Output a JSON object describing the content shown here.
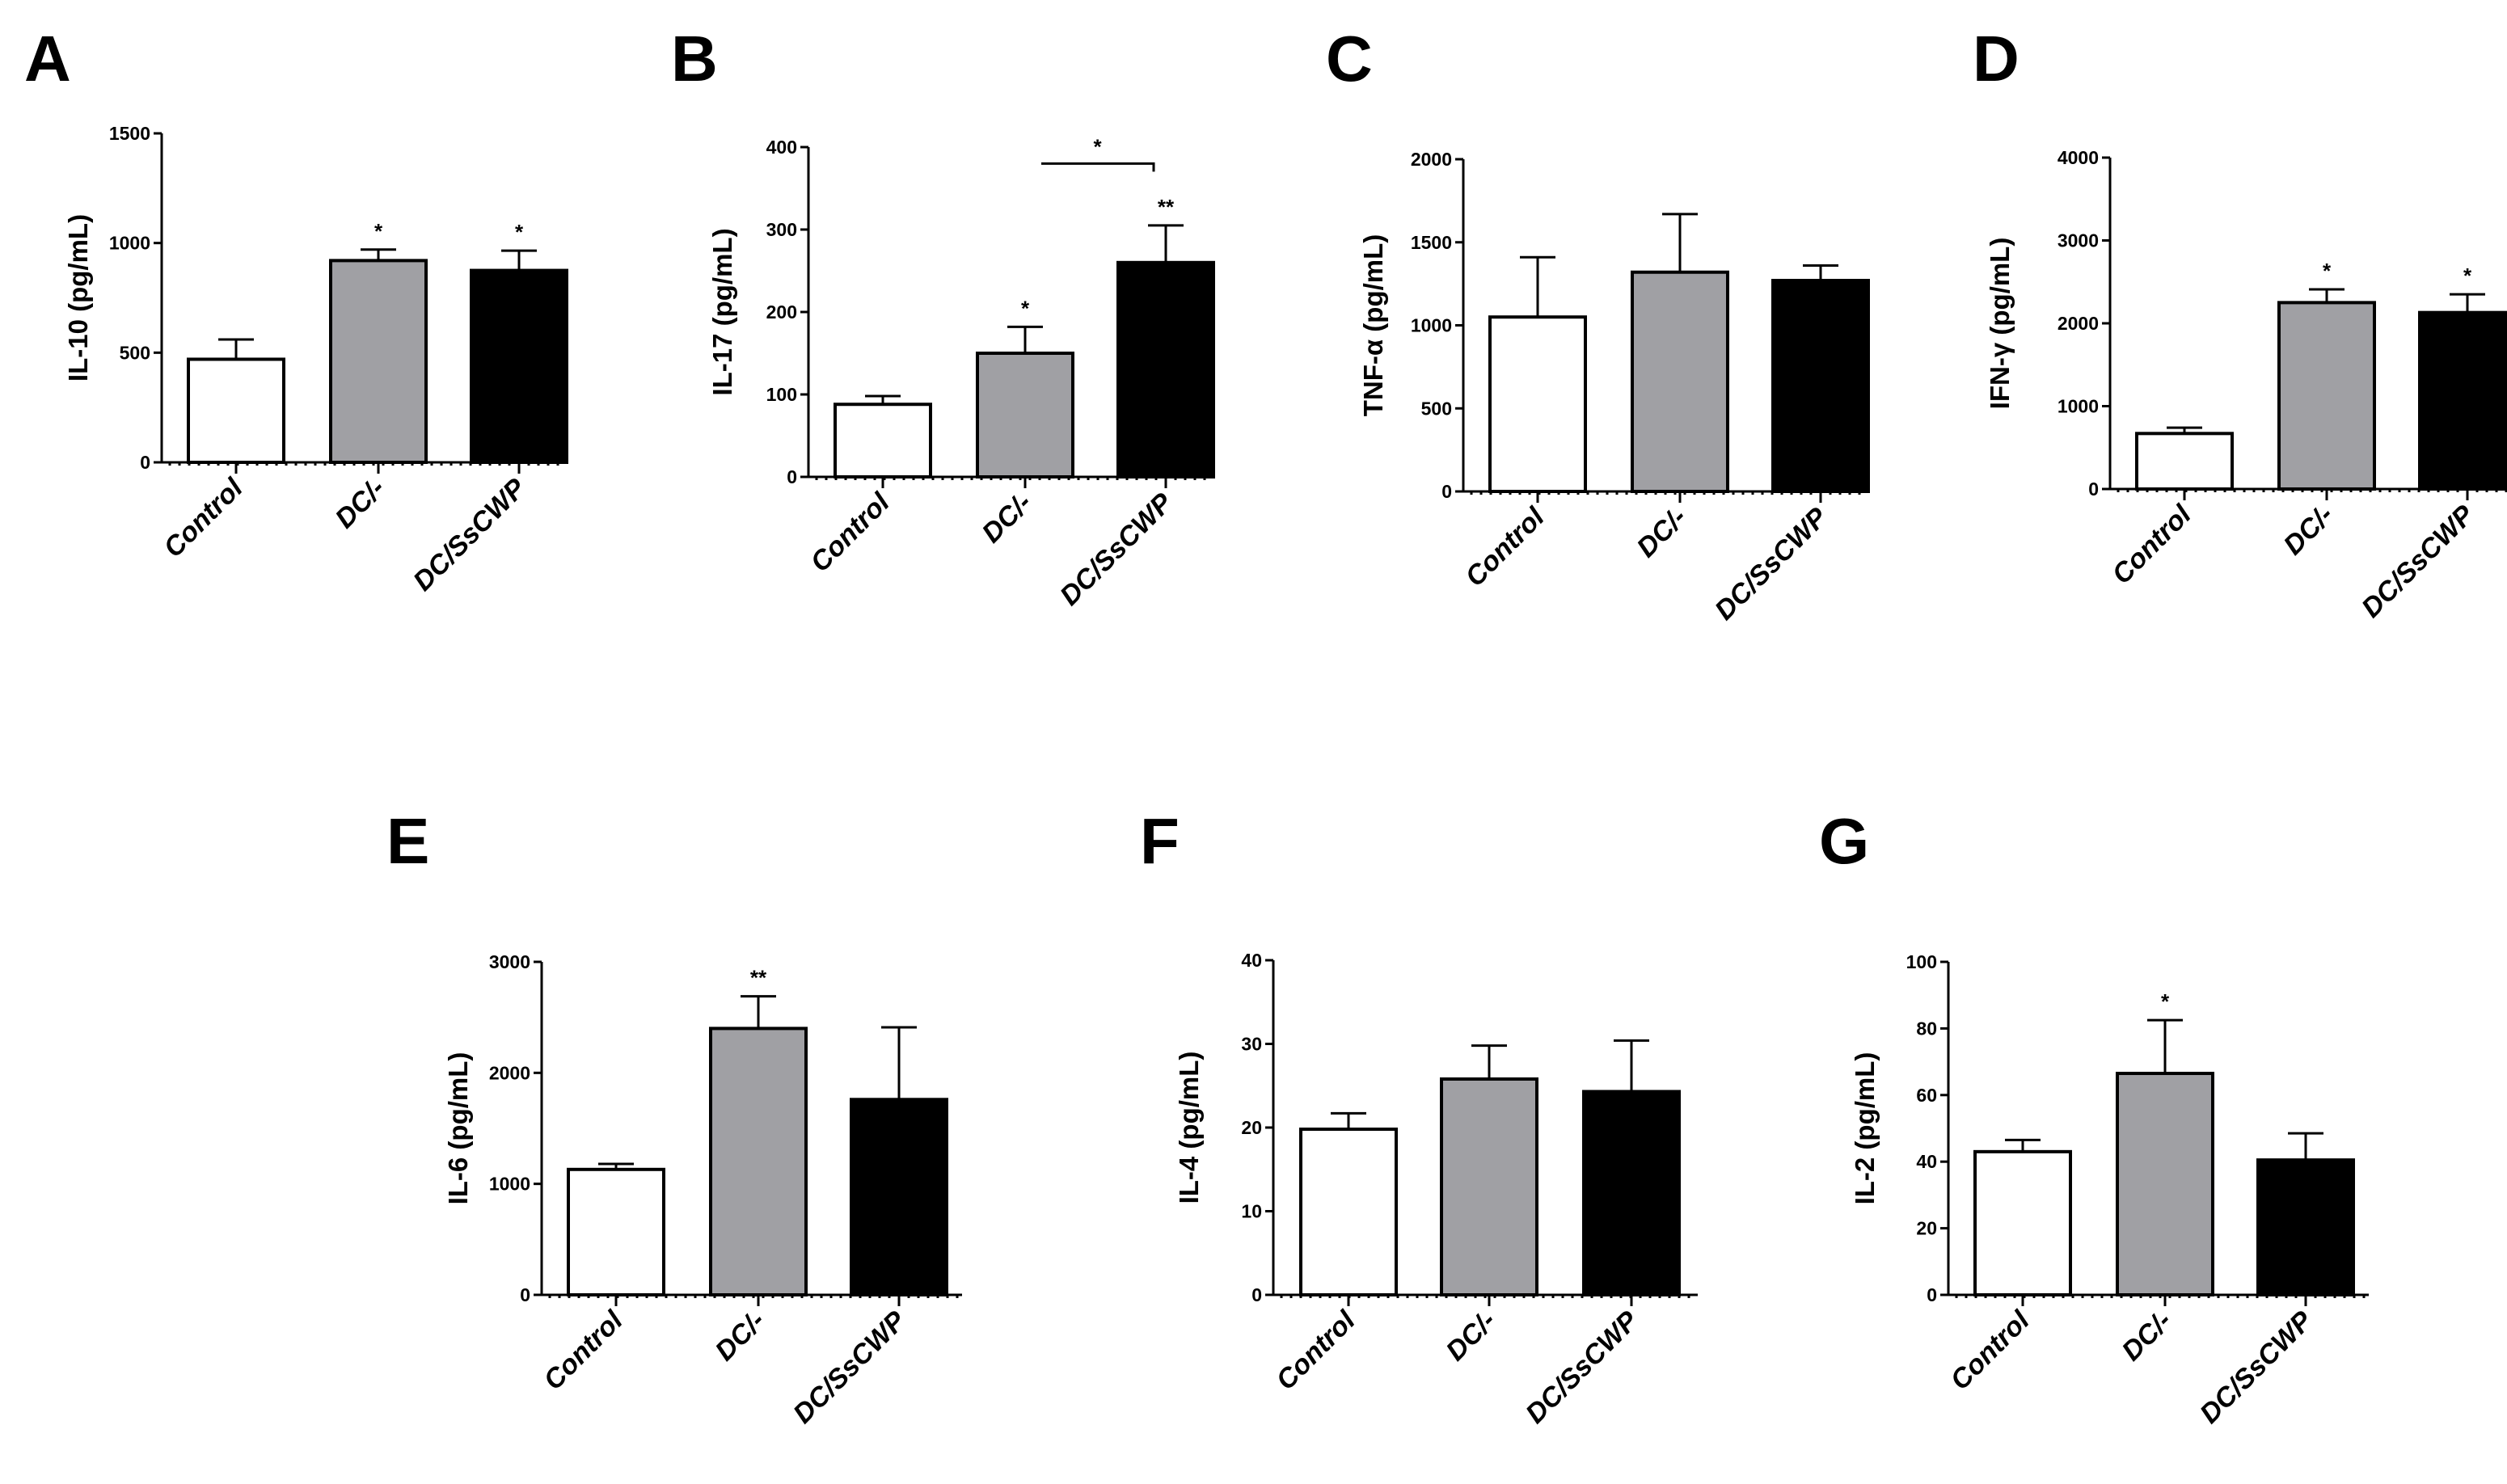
{
  "colors": {
    "Control": "#ffffff",
    "DC/-": "#a0a0a4",
    "DC/SsCWP": "#000000"
  },
  "chart_data": [
    {
      "type": "bar",
      "panel": "A",
      "ylabel": "IL-10 (pg/mL)",
      "categories": [
        "Control",
        "DC/-",
        "DC/SsCWP"
      ],
      "values": [
        470,
        920,
        875
      ],
      "errors": [
        90,
        50,
        90
      ],
      "ylim": [
        0,
        1500
      ],
      "yticks": [
        "0",
        "500",
        "1000",
        "1500"
      ],
      "annotations": [
        "",
        "*",
        "*"
      ],
      "bracket": null
    },
    {
      "type": "bar",
      "panel": "B",
      "ylabel": "IL-17 (pg/mL)",
      "categories": [
        "Control",
        "DC/-",
        "DC/SsCWP"
      ],
      "values": [
        88,
        150,
        260
      ],
      "errors": [
        10,
        32,
        45
      ],
      "ylim": [
        0,
        400
      ],
      "yticks": [
        "0",
        "100",
        "200",
        "300",
        "400"
      ],
      "annotations": [
        "",
        "*",
        "**"
      ],
      "bracket": {
        "from": 1,
        "to": 2,
        "value": 380,
        "label": "*"
      }
    },
    {
      "type": "bar",
      "panel": "C",
      "ylabel": "TNF-α (pg/mL)",
      "categories": [
        "Control",
        "DC/-",
        "DC/SsCWP"
      ],
      "values": [
        1050,
        1320,
        1270
      ],
      "errors": [
        360,
        350,
        90
      ],
      "ylim": [
        0,
        2000
      ],
      "yticks": [
        "0",
        "500",
        "1000",
        "1500",
        "2000"
      ],
      "annotations": [
        "",
        "",
        ""
      ],
      "bracket": null
    },
    {
      "type": "bar",
      "panel": "D",
      "ylabel": "IFN-γ (pg/mL)",
      "categories": [
        "Control",
        "DC/-",
        "DC/SsCWP"
      ],
      "values": [
        670,
        2250,
        2130
      ],
      "errors": [
        70,
        160,
        220
      ],
      "ylim": [
        0,
        4000
      ],
      "yticks": [
        "0",
        "1000",
        "2000",
        "3000",
        "4000"
      ],
      "annotations": [
        "",
        "*",
        "*"
      ],
      "bracket": null
    },
    {
      "type": "bar",
      "panel": "E",
      "ylabel": "IL-6 (pg/mL)",
      "categories": [
        "Control",
        "DC/-",
        "DC/SsCWP"
      ],
      "values": [
        1130,
        2400,
        1760
      ],
      "errors": [
        50,
        290,
        650
      ],
      "ylim": [
        0,
        3000
      ],
      "yticks": [
        "0",
        "1000",
        "2000",
        "3000"
      ],
      "annotations": [
        "",
        "**",
        ""
      ],
      "bracket": null
    },
    {
      "type": "bar",
      "panel": "F",
      "ylabel": "IL-4 (pg/mL)",
      "categories": [
        "Control",
        "DC/-",
        "DC/SsCWP"
      ],
      "values": [
        19.8,
        25.8,
        24.3
      ],
      "errors": [
        1.9,
        4,
        6.1
      ],
      "ylim": [
        0,
        40
      ],
      "yticks": [
        "0",
        "10",
        "20",
        "30",
        "40"
      ],
      "annotations": [
        "",
        "",
        ""
      ],
      "bracket": null
    },
    {
      "type": "bar",
      "panel": "G",
      "ylabel": "IL-2 (pg/mL)",
      "categories": [
        "Control",
        "DC/-",
        "DC/SsCWP"
      ],
      "values": [
        43,
        66.5,
        40.5
      ],
      "errors": [
        3.5,
        16,
        8
      ],
      "ylim": [
        0,
        100
      ],
      "yticks": [
        "0",
        "20",
        "40",
        "60",
        "80",
        "100"
      ],
      "annotations": [
        "",
        "*",
        ""
      ],
      "bracket": null
    }
  ]
}
